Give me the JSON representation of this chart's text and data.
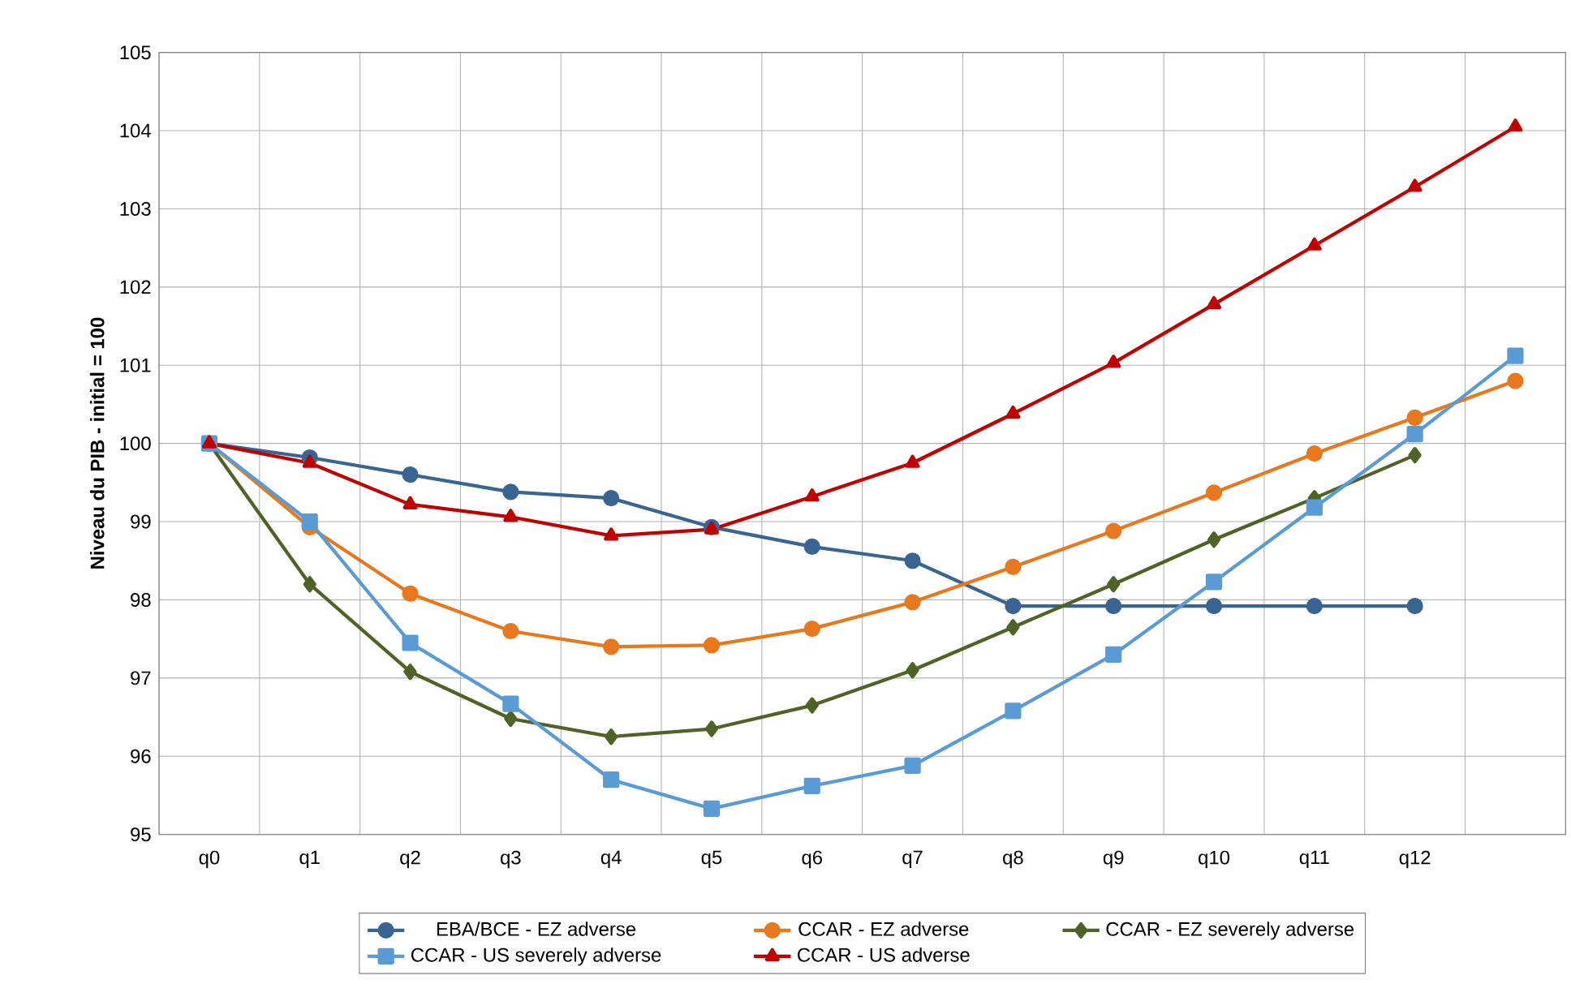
{
  "chart_data": {
    "type": "line",
    "ylabel": "Niveau du PIB - initial = 100",
    "categories": [
      "q0",
      "q1",
      "q2",
      "q3",
      "q4",
      "q5",
      "q6",
      "q7",
      "q8",
      "q9",
      "q10",
      "q11",
      "q12",
      null
    ],
    "ylim": [
      95,
      105
    ],
    "yticks": [
      95,
      96,
      97,
      98,
      99,
      100,
      101,
      102,
      103,
      104,
      105
    ],
    "grid": true,
    "legend": "bottom",
    "series": [
      {
        "name": "EBA/BCE - EZ adverse",
        "color": "#3a6491",
        "marker": "circle",
        "values": [
          100,
          99.82,
          99.6,
          99.38,
          99.3,
          98.93,
          98.68,
          98.5,
          97.92,
          97.92,
          97.92,
          97.92,
          97.92,
          null
        ]
      },
      {
        "name": "CCAR - EZ adverse",
        "color": "#e8781e",
        "marker": "circle",
        "values": [
          100,
          98.93,
          98.08,
          97.6,
          97.4,
          97.42,
          97.63,
          97.97,
          98.42,
          98.88,
          99.37,
          99.87,
          100.33,
          100.8
        ]
      },
      {
        "name": "CCAR - EZ severely adverse",
        "color": "#4f6228",
        "marker": "diamond",
        "values": [
          100,
          98.2,
          97.08,
          96.48,
          96.25,
          96.35,
          96.65,
          97.1,
          97.65,
          98.2,
          98.77,
          99.3,
          99.85,
          null
        ]
      },
      {
        "name": "CCAR - US severely adverse",
        "color": "#5b9bd5",
        "marker": "square",
        "values": [
          100,
          99.0,
          97.45,
          96.67,
          95.7,
          95.33,
          95.62,
          95.88,
          96.58,
          97.3,
          98.23,
          99.18,
          100.12,
          101.12
        ]
      },
      {
        "name": "CCAR - US adverse",
        "color": "#c00000",
        "marker": "triangle",
        "values": [
          100,
          99.75,
          99.22,
          99.06,
          98.82,
          98.9,
          99.32,
          99.75,
          100.38,
          101.03,
          101.78,
          102.53,
          103.28,
          104.05
        ]
      }
    ]
  }
}
